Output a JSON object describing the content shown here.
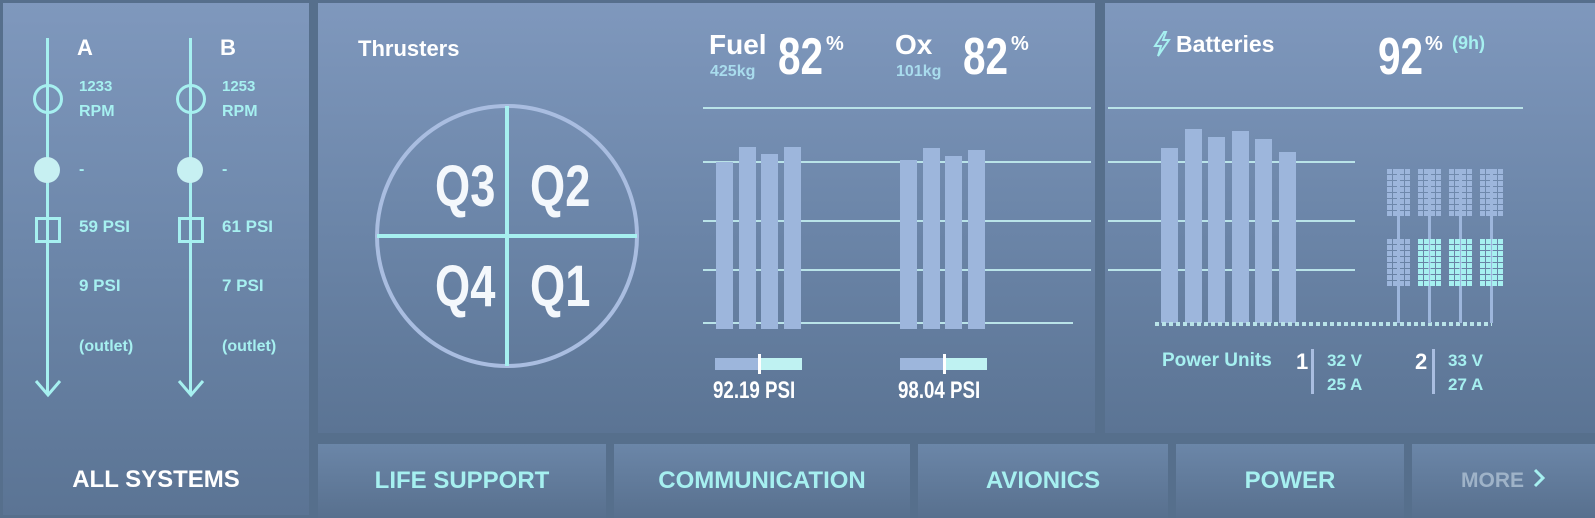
{
  "left": {
    "channels": [
      {
        "label": "A",
        "rpm_value": "1233",
        "rpm_unit": "RPM",
        "dash": "-",
        "psi_in": "59 PSI",
        "psi_out": "9 PSI",
        "outlet": "(outlet)"
      },
      {
        "label": "B",
        "rpm_value": "1253",
        "rpm_unit": "RPM",
        "dash": "-",
        "psi_in": "61 PSI",
        "psi_out": "7 PSI",
        "outlet": "(outlet)"
      }
    ],
    "all_systems": "ALL SYSTEMS"
  },
  "thrusters": {
    "title": "Thrusters",
    "quadrants": {
      "q1": "Q1",
      "q2": "Q2",
      "q3": "Q3",
      "q4": "Q4"
    },
    "fuel": {
      "label": "Fuel",
      "mass": "425kg",
      "percent": "82",
      "unit": "%",
      "pressure": "92.19 PSI",
      "pressure_fraction": 0.5,
      "bars": [
        0.88,
        0.96,
        0.92,
        0.96
      ]
    },
    "ox": {
      "label": "Ox",
      "mass": "101kg",
      "percent": "82",
      "unit": "%",
      "pressure": "98.04 PSI",
      "pressure_fraction": 0.5,
      "bars": [
        0.89,
        0.95,
        0.91,
        0.94
      ]
    }
  },
  "batteries": {
    "title": "Batteries",
    "percent": "92",
    "unit": "%",
    "duration": "(9h)",
    "bars": [
      0.9,
      1.0,
      0.96,
      0.99,
      0.95,
      0.88
    ],
    "power_units_label": "Power Units",
    "units": [
      {
        "index": "1",
        "voltage": "32 V",
        "current": "25 A"
      },
      {
        "index": "2",
        "voltage": "33 V",
        "current": "27 A"
      }
    ]
  },
  "tabs": {
    "life_support": "LIFE SUPPORT",
    "communication": "COMMUNICATION",
    "avionics": "AVIONICS",
    "power": "POWER",
    "more": "MORE"
  },
  "colors": {
    "accent": "#a6f0f0",
    "bar": "#9db6dc",
    "background": "#566f8c"
  }
}
